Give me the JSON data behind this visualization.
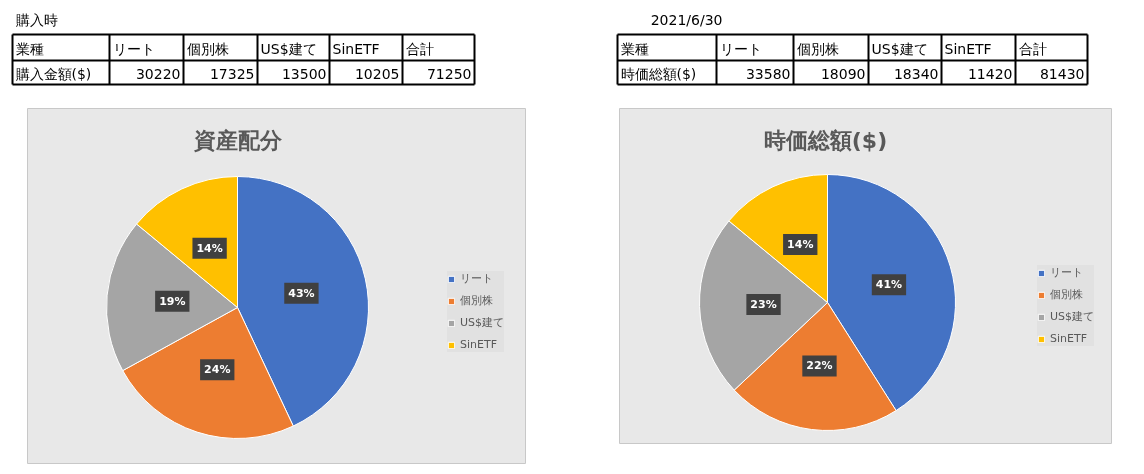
{
  "chart_data": [
    {
      "type": "other",
      "annotations": [
        "購入時",
        "業種",
        "リート",
        "個別株",
        "US$建て",
        "SinETF",
        "合計",
        "購入金額($)",
        "30220",
        "17325",
        "13500",
        "10205",
        "71250"
      ]
    },
    {
      "type": "other",
      "annotations": [
        "2021/6/30",
        "業種",
        "リート",
        "個別株",
        "US$建て",
        "SinETF",
        "合計",
        "時価総額($)",
        "33580",
        "18090",
        "18340",
        "11420",
        "81430"
      ]
    },
    {
      "type": "pie",
      "title": "資産配分",
      "categories": [
        "リート",
        "個別株",
        "US$建て",
        "SinETF"
      ],
      "values": [
        43,
        24,
        19,
        14
      ],
      "colors": [
        "#4472c4",
        "#ed7d31",
        "#a5a5a5",
        "#ffc000"
      ],
      "value_labels": [
        "43%",
        "24%",
        "19%",
        "14%"
      ],
      "legend": "right"
    },
    {
      "type": "pie",
      "title": "時価総額($)",
      "categories": [
        "リート",
        "個別株",
        "US$建て",
        "SinETF"
      ],
      "values": [
        41,
        22,
        23,
        14
      ],
      "colors": [
        "#4472c4",
        "#ed7d31",
        "#a5a5a5",
        "#ffc000"
      ],
      "value_labels": [
        "41%",
        "22%",
        "23%",
        "14%"
      ],
      "legend": "right"
    }
  ]
}
